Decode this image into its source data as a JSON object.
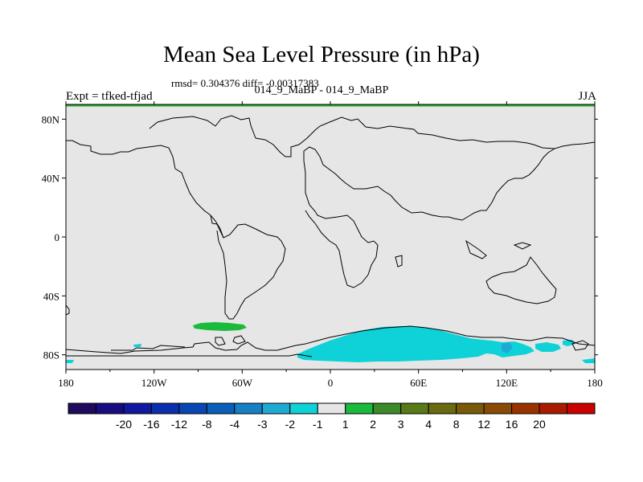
{
  "chart_data": {
    "type": "heatmap",
    "title": "Mean Sea Level Pressure (in hPa)",
    "stats_text": "rmsd= 0.304376 diff= -0.00317383",
    "subtitle": "014_9_MaBP - 014_9_MaBP",
    "left_label": "Expt = tfked-tfjad",
    "right_label": "JJA",
    "x_ticks": [
      "180",
      "120W",
      "60W",
      "0",
      "60E",
      "120E",
      "180"
    ],
    "y_ticks": [
      "80N",
      "40N",
      "0",
      "40S",
      "80S"
    ],
    "xlim": [
      -180,
      180
    ],
    "ylim": [
      -90,
      90
    ],
    "background_color": "#e6e6e6",
    "colorbar": {
      "labels": [
        "-20",
        "-16",
        "-12",
        "-8",
        "-4",
        "-3",
        "-2",
        "-1",
        "1",
        "2",
        "3",
        "4",
        "8",
        "12",
        "16",
        "20"
      ],
      "colors": [
        "#1e0a5e",
        "#180c82",
        "#0f1aa0",
        "#0a2faf",
        "#0846b4",
        "#0a5fba",
        "#1580c6",
        "#1faad4",
        "#0fd2d8",
        "#e6e6e6",
        "#1aba3c",
        "#3c8a28",
        "#587a18",
        "#6a6a10",
        "#7a5a08",
        "#8a4a06",
        "#9a3200",
        "#aa1a00",
        "#cc0000"
      ]
    },
    "anomalies": [
      {
        "region": "Southern Ocean south of Africa / Indian Ocean",
        "range": "-2 to -1",
        "color": "#0fd2d8"
      },
      {
        "region": "Southern Ocean west of Drake Passage",
        "range": "1 to 2",
        "color": "#1aba3c"
      }
    ]
  }
}
